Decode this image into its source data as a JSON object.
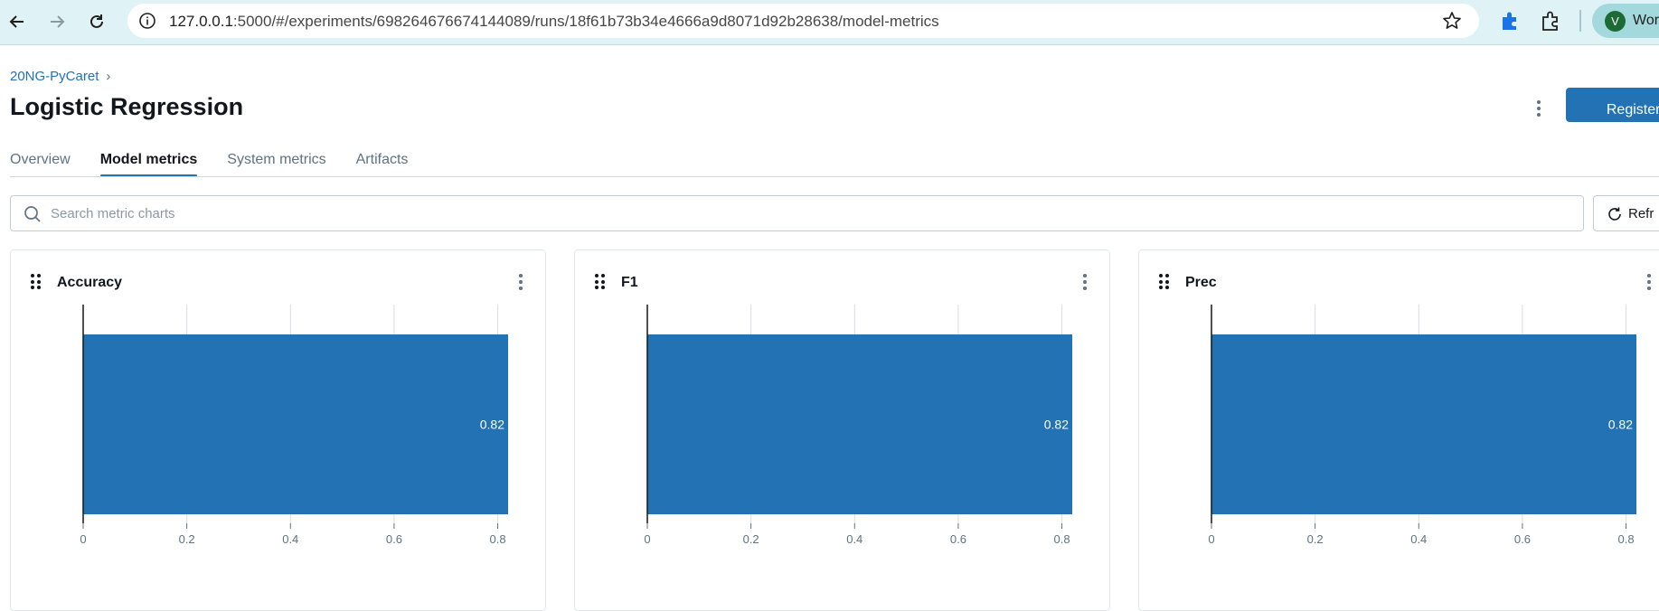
{
  "browser": {
    "url_host": "127.0.0.1",
    "url_path": ":5000/#/experiments/698264676674144089/runs/18f61b73b34e4666a9d8071d92b28638/model-metrics",
    "profile_initial": "V",
    "profile_label": "Wor"
  },
  "header": {
    "breadcrumb": "20NG-PyCaret",
    "title": "Logistic Regression",
    "register_label": "Register mo"
  },
  "tabs": [
    {
      "label": "Overview"
    },
    {
      "label": "Model metrics"
    },
    {
      "label": "System metrics"
    },
    {
      "label": "Artifacts"
    }
  ],
  "search": {
    "placeholder": "Search metric charts",
    "refresh_label": "Refr"
  },
  "colors": {
    "accent": "#2272b4",
    "bar": "#2272b4"
  },
  "chart_data": [
    {
      "type": "bar",
      "title": "Accuracy",
      "orientation": "horizontal",
      "values": [
        0.82
      ],
      "value_labels": [
        "0.82"
      ],
      "xlim": [
        0,
        0.82
      ],
      "xticks": [
        "0",
        "0.2",
        "0.4",
        "0.6",
        "0.8"
      ],
      "grid": true
    },
    {
      "type": "bar",
      "title": "F1",
      "orientation": "horizontal",
      "values": [
        0.82
      ],
      "value_labels": [
        "0.82"
      ],
      "xlim": [
        0,
        0.82
      ],
      "xticks": [
        "0",
        "0.2",
        "0.4",
        "0.6",
        "0.8"
      ],
      "grid": true
    },
    {
      "type": "bar",
      "title": "Prec",
      "orientation": "horizontal",
      "values": [
        0.82
      ],
      "value_labels": [
        "0.82"
      ],
      "xlim": [
        0,
        0.82
      ],
      "xticks": [
        "0",
        "0.2",
        "0.4",
        "0.6",
        "0.8"
      ],
      "grid": true
    }
  ]
}
